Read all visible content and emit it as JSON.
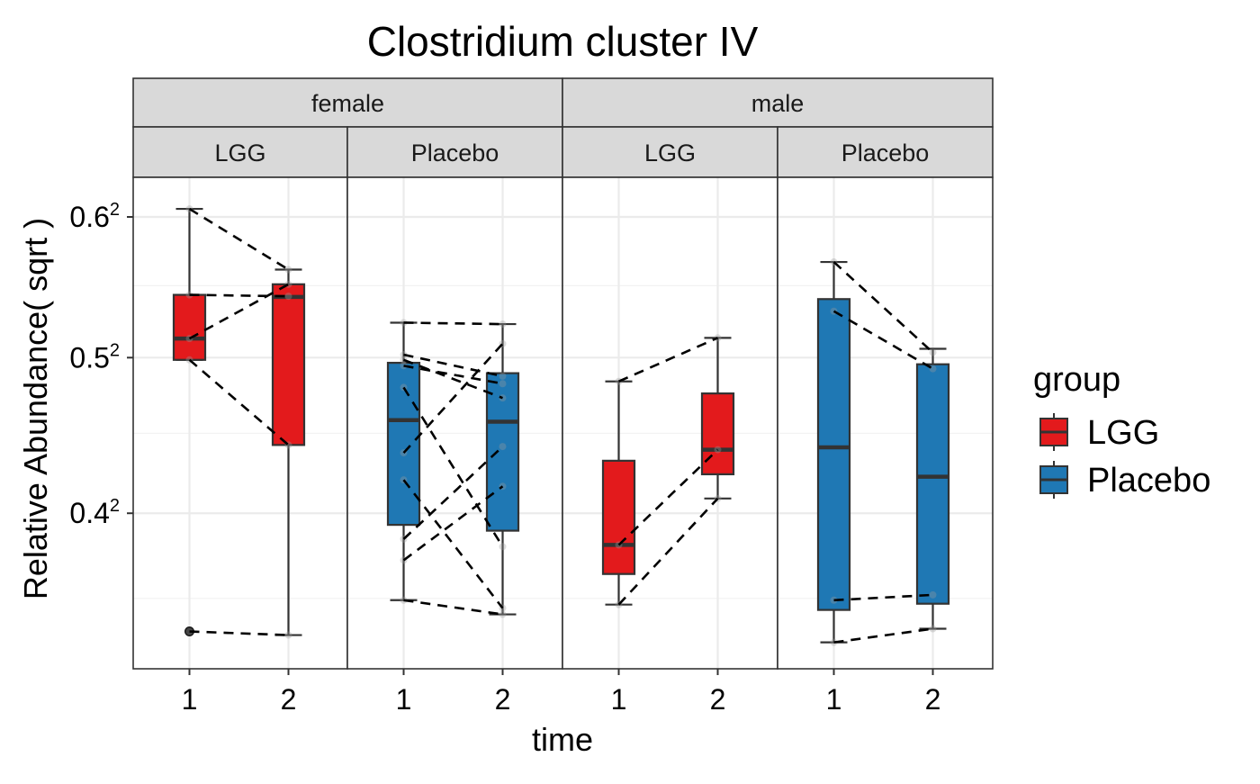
{
  "chart_data": {
    "type": "boxplot",
    "title": "Clostridium cluster IV",
    "xlabel": "time",
    "ylabel": "Relative Abundance( sqrt )",
    "y_axis": {
      "scale": "sqrt",
      "range": [
        0.3112,
        0.6298
      ],
      "ticks": [
        {
          "value": 0.4,
          "base": "0.4",
          "exp": "2"
        },
        {
          "value": 0.5,
          "base": "0.5",
          "exp": "2"
        },
        {
          "value": 0.6,
          "base": "0.6",
          "exp": "2"
        }
      ],
      "minor_gridlines": [
        0.35,
        0.45,
        0.55
      ]
    },
    "x_ticks": [
      "1",
      "2"
    ],
    "grid": true,
    "legend": {
      "title": "group",
      "position": "right",
      "entries": [
        {
          "label": "LGG",
          "color": "#E31A1C"
        },
        {
          "label": "Placebo",
          "color": "#1F78B4"
        }
      ]
    },
    "facets_outer": [
      "female",
      "male"
    ],
    "panels": [
      {
        "outer": "female",
        "inner": "LGG",
        "color": "#E31A1C",
        "boxes": [
          {
            "time": "1",
            "whisker_low": 0.4985,
            "q1": 0.4985,
            "median": 0.513,
            "q3": 0.5435,
            "whisker_high": 0.606,
            "outliers": [
              0.3315
            ]
          },
          {
            "time": "2",
            "whisker_low": 0.3295,
            "q1": 0.4425,
            "median": 0.542,
            "q3": 0.551,
            "whisker_high": 0.5615,
            "outliers": []
          }
        ],
        "pairs": [
          [
            0.606,
            0.5615
          ],
          [
            0.5435,
            0.5425
          ],
          [
            0.513,
            0.551
          ],
          [
            0.4985,
            0.4425
          ],
          [
            0.3315,
            0.3295
          ]
        ]
      },
      {
        "outer": "female",
        "inner": "Placebo",
        "color": "#1F78B4",
        "boxes": [
          {
            "time": "1",
            "whisker_low": 0.349,
            "q1": 0.393,
            "median": 0.4585,
            "q3": 0.4965,
            "whisker_high": 0.524,
            "outliers": []
          },
          {
            "time": "2",
            "whisker_low": 0.341,
            "q1": 0.3895,
            "median": 0.4575,
            "q3": 0.4895,
            "whisker_high": 0.523,
            "outliers": []
          }
        ],
        "pairs": [
          [
            0.524,
            0.523
          ],
          [
            0.502,
            0.4875
          ],
          [
            0.4985,
            0.473
          ],
          [
            0.4945,
            0.4825
          ],
          [
            0.48,
            0.38
          ],
          [
            0.4375,
            0.5095
          ],
          [
            0.4205,
            0.3445
          ],
          [
            0.3845,
            0.4415
          ],
          [
            0.372,
            0.4165
          ],
          [
            0.349,
            0.341
          ]
        ]
      },
      {
        "outer": "male",
        "inner": "LGG",
        "color": "#E31A1C",
        "boxes": [
          {
            "time": "1",
            "whisker_low": 0.3465,
            "q1": 0.364,
            "median": 0.381,
            "q3": 0.4325,
            "whisker_high": 0.484,
            "outliers": []
          },
          {
            "time": "2",
            "whisker_low": 0.409,
            "q1": 0.424,
            "median": 0.4395,
            "q3": 0.476,
            "whisker_high": 0.5135,
            "outliers": []
          }
        ],
        "pairs": [
          [
            0.484,
            0.5135
          ],
          [
            0.381,
            0.4395
          ],
          [
            0.3465,
            0.409
          ]
        ]
      },
      {
        "outer": "male",
        "inner": "Placebo",
        "color": "#1F78B4",
        "boxes": [
          {
            "time": "1",
            "whisker_low": 0.3255,
            "q1": 0.3435,
            "median": 0.441,
            "q3": 0.5405,
            "whisker_high": 0.567,
            "outliers": []
          },
          {
            "time": "2",
            "whisker_low": 0.333,
            "q1": 0.347,
            "median": 0.4225,
            "q3": 0.4955,
            "whisker_high": 0.506,
            "outliers": []
          }
        ],
        "pairs": [
          [
            0.567,
            0.5035
          ],
          [
            0.532,
            0.4925
          ],
          [
            0.349,
            0.352
          ],
          [
            0.3255,
            0.333
          ]
        ]
      }
    ]
  }
}
